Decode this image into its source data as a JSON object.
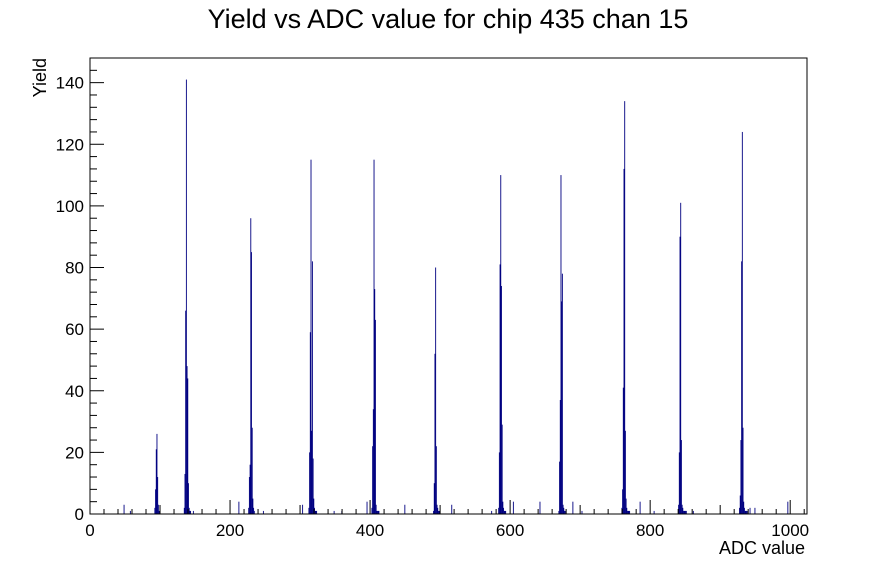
{
  "chart_data": {
    "type": "bar",
    "title": "Yield vs ADC value for chip 435 chan 15",
    "xlabel": "ADC value",
    "ylabel": "Yield",
    "xlim": [
      0,
      1024
    ],
    "ylim": [
      0,
      148
    ],
    "x_ticks": [
      0,
      200,
      400,
      600,
      800,
      1000
    ],
    "y_ticks": [
      0,
      20,
      40,
      60,
      80,
      100,
      120,
      140
    ],
    "grid": false,
    "legend": "none",
    "bar_color": "#000080",
    "series": [
      {
        "x": [
          48,
          57,
          92,
          93,
          94,
          95,
          96,
          97,
          98,
          134,
          135,
          136,
          137,
          138,
          139,
          140,
          141,
          142,
          143,
          147,
          212,
          226,
          227,
          228,
          229,
          230,
          231,
          232,
          233,
          234,
          247,
          303,
          312,
          313,
          314,
          315,
          316,
          317,
          318,
          319,
          320,
          321,
          322,
          323,
          348,
          359,
          395,
          402,
          403,
          404,
          405,
          406,
          407,
          408,
          409,
          410,
          411,
          412,
          449,
          490,
          491,
          492,
          493,
          494,
          495,
          496,
          497,
          498,
          499,
          516,
          573,
          583,
          584,
          585,
          586,
          587,
          588,
          589,
          590,
          591,
          592,
          593,
          604,
          642,
          669,
          670,
          671,
          672,
          673,
          674,
          675,
          676,
          677,
          678,
          689,
          702,
          759,
          760,
          761,
          762,
          763,
          764,
          765,
          766,
          767,
          768,
          769,
          770,
          785,
          805,
          840,
          841,
          842,
          843,
          844,
          845,
          846,
          847,
          848,
          849,
          850,
          851,
          861,
          927,
          928,
          929,
          930,
          931,
          932,
          933,
          934,
          935,
          936,
          937,
          938,
          942,
          949,
          996
        ],
        "values": [
          3,
          1,
          2,
          8,
          21,
          26,
          12,
          3,
          1,
          2,
          13,
          66,
          141,
          48,
          44,
          10,
          2,
          1,
          1,
          1,
          4,
          2,
          12,
          16,
          96,
          85,
          28,
          5,
          2,
          1,
          1,
          3,
          2,
          20,
          59,
          115,
          27,
          82,
          18,
          5,
          2,
          1,
          1,
          1,
          1,
          1,
          4,
          2,
          22,
          34,
          115,
          73,
          63,
          3,
          1,
          1,
          1,
          1,
          3,
          1,
          10,
          52,
          80,
          22,
          3,
          2,
          1,
          1,
          1,
          3,
          1,
          2,
          20,
          81,
          110,
          74,
          29,
          4,
          2,
          1,
          1,
          1,
          4,
          4,
          1,
          17,
          37,
          110,
          69,
          78,
          3,
          2,
          1,
          1,
          4,
          1,
          2,
          8,
          41,
          112,
          134,
          27,
          5,
          2,
          1,
          1,
          1,
          1,
          4,
          1,
          3,
          20,
          90,
          101,
          24,
          3,
          2,
          1,
          1,
          1,
          1,
          1,
          1,
          2,
          6,
          24,
          82,
          124,
          28,
          4,
          2,
          1,
          1,
          1,
          1,
          2,
          2,
          4
        ]
      }
    ]
  }
}
